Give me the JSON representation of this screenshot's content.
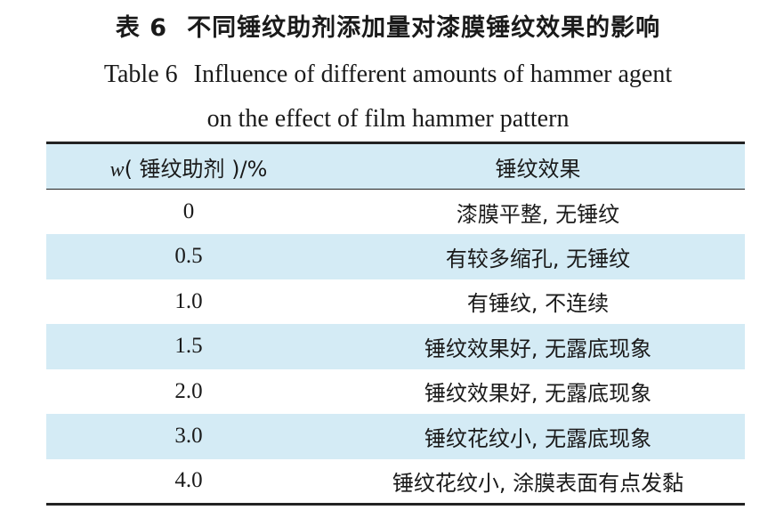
{
  "title_cn": {
    "number": "表 6",
    "text": "不同锤纹助剂添加量对漆膜锤纹效果的影响"
  },
  "title_en": {
    "number": "Table 6",
    "line1": "Influence of different amounts of hammer agent",
    "line2": "on the effect of film hammer pattern"
  },
  "table": {
    "header": {
      "col1_var": "w",
      "col1_rest": "( 锤纹助剂 )/%",
      "col2": "锤纹效果"
    },
    "rows": [
      {
        "amount": "0",
        "effect": "漆膜平整, 无锤纹"
      },
      {
        "amount": "0.5",
        "effect": "有较多缩孔, 无锤纹"
      },
      {
        "amount": "1.0",
        "effect": "有锤纹, 不连续"
      },
      {
        "amount": "1.5",
        "effect": "锤纹效果好, 无露底现象"
      },
      {
        "amount": "2.0",
        "effect": "锤纹效果好, 无露底现象"
      },
      {
        "amount": "3.0",
        "effect": "锤纹花纹小, 无露底现象"
      },
      {
        "amount": "4.0",
        "effect": "锤纹花纹小, 涂膜表面有点发黏"
      }
    ]
  },
  "colors": {
    "row_shade": "#d4ebf5",
    "rule": "#222222"
  }
}
